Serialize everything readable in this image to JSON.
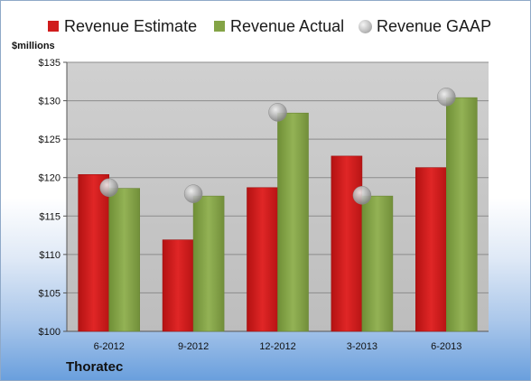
{
  "company_label": "Thoratec",
  "units_label": "$millions",
  "chart_data": {
    "type": "bar",
    "categories": [
      "6-2012",
      "9-2012",
      "12-2012",
      "3-2013",
      "6-2013"
    ],
    "ylim": [
      100,
      135
    ],
    "yticks": [
      100,
      105,
      110,
      115,
      120,
      125,
      130,
      135
    ],
    "ytick_labels": [
      "$100",
      "$105",
      "$110",
      "$115",
      "$120",
      "$125",
      "$130",
      "$135"
    ],
    "ylabel": "$millions",
    "grid": true,
    "legend_position": "top",
    "series": [
      {
        "name": "Revenue Estimate",
        "kind": "bar",
        "color": "#d01c1c",
        "values": [
          120.4,
          111.9,
          118.7,
          122.8,
          121.3
        ]
      },
      {
        "name": "Revenue Actual",
        "kind": "bar",
        "color": "#84a446",
        "values": [
          118.6,
          117.6,
          128.4,
          117.6,
          130.4
        ]
      },
      {
        "name": "Revenue GAAP",
        "kind": "marker",
        "color": "#b5b5b5",
        "values": [
          118.7,
          117.9,
          128.5,
          117.7,
          130.5
        ]
      }
    ]
  }
}
